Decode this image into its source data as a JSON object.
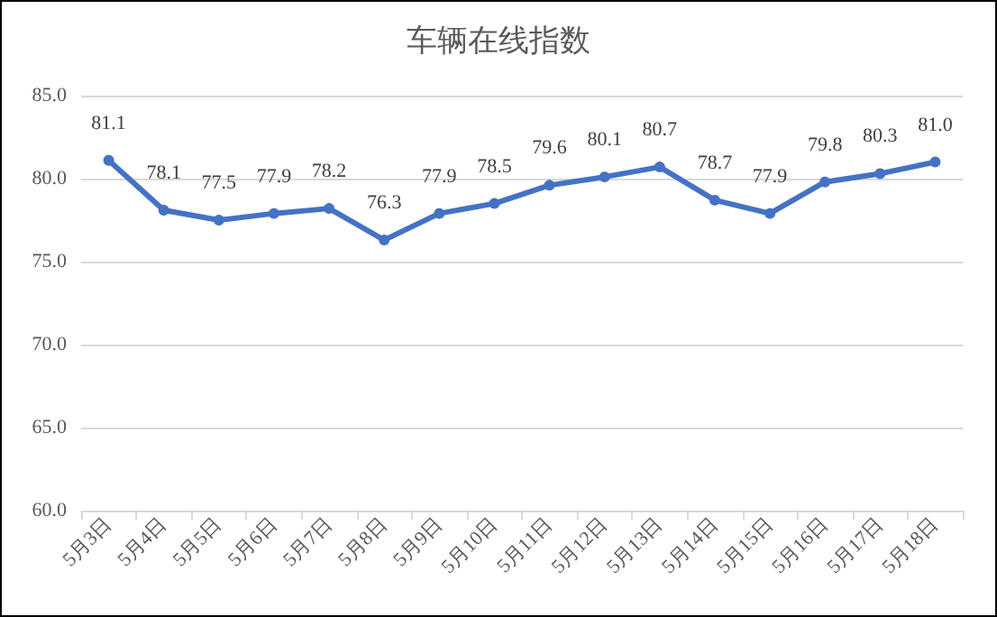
{
  "chart_data": {
    "type": "line",
    "title": "车辆在线指数",
    "categories": [
      "5月3日",
      "5月4日",
      "5月5日",
      "5月6日",
      "5月7日",
      "5月8日",
      "5月9日",
      "5月10日",
      "5月11日",
      "5月12日",
      "5月13日",
      "5月14日",
      "5月15日",
      "5月16日",
      "5月17日",
      "5月18日"
    ],
    "series": [
      {
        "color": "#4472c4",
        "values": [
          81.1,
          78.1,
          77.5,
          77.9,
          78.2,
          76.3,
          77.9,
          78.5,
          79.6,
          80.1,
          80.7,
          78.7,
          77.9,
          79.8,
          80.3,
          81.0
        ],
        "value_labels": [
          "81.1",
          "78.1",
          "77.5",
          "77.9",
          "78.2",
          "76.3",
          "77.9",
          "78.5",
          "79.6",
          "80.1",
          "80.7",
          "78.7",
          "77.9",
          "79.8",
          "80.3",
          "81.0"
        ]
      }
    ],
    "ylim": [
      60,
      85
    ],
    "yticks": [
      {
        "value": 60,
        "label": "60.0"
      },
      {
        "value": 65,
        "label": "65.0"
      },
      {
        "value": 70,
        "label": "70.0"
      },
      {
        "value": 75,
        "label": "75.0"
      },
      {
        "value": 80,
        "label": "80.0"
      },
      {
        "value": 85,
        "label": "85.0"
      }
    ],
    "grid": "y",
    "marker": "circle",
    "line_style": "solid"
  }
}
